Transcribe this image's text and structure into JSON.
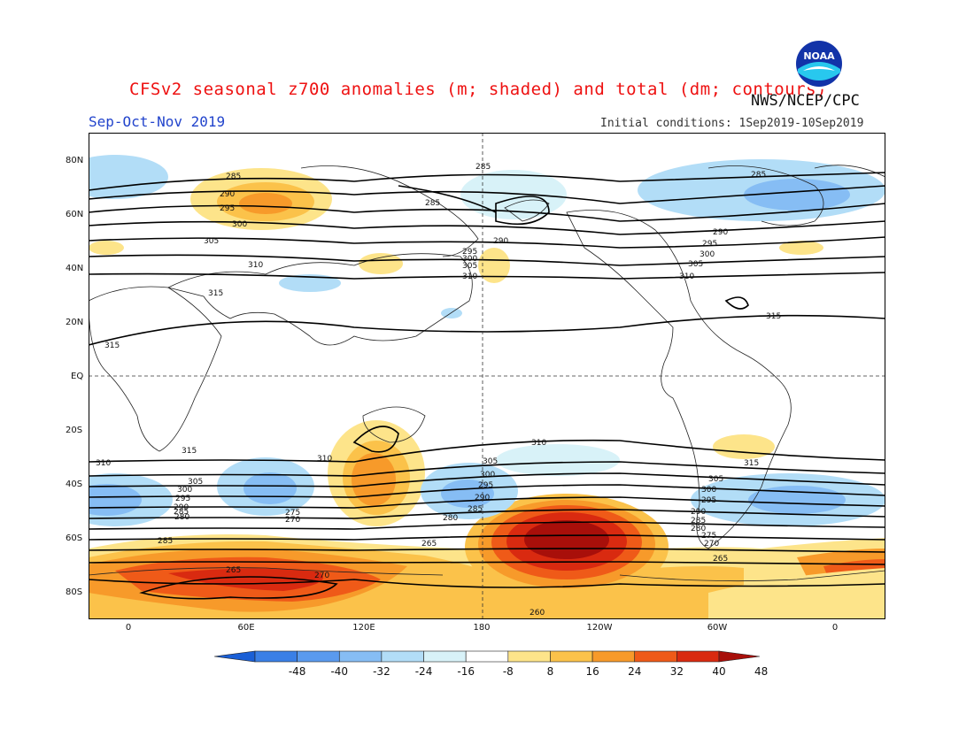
{
  "header": {
    "title": "CFSv2 seasonal z700 anomalies (m; shaded) and total (dm; contours)",
    "agency": "NWS/NCEP/CPC",
    "season": "Sep-Oct-Nov 2019",
    "initial_conditions": "Initial conditions: 1Sep2019-10Sep2019"
  },
  "logo": {
    "icon": "noaa-logo",
    "text": "NOAA"
  },
  "axes": {
    "lat_labels": [
      "80N",
      "60N",
      "40N",
      "20N",
      "EQ",
      "20S",
      "40S",
      "60S",
      "80S"
    ],
    "lon_labels": [
      "0",
      "60E",
      "120E",
      "180",
      "120W",
      "60W",
      "0"
    ]
  },
  "colorbar": {
    "labels": [
      "-48",
      "-40",
      "-32",
      "-24",
      "-16",
      "-8",
      "8",
      "16",
      "24",
      "32",
      "40",
      "48"
    ],
    "colors": [
      "#1a5fd6",
      "#3a7fe6",
      "#5a9aee",
      "#86bdf4",
      "#b2ddf7",
      "#d8f2f8",
      "#ffffff",
      "#fde48a",
      "#fbc24a",
      "#f79a2a",
      "#ef5a18",
      "#d92a10",
      "#a80f0a"
    ]
  },
  "contour_labels": {
    "north": [
      "285",
      "290",
      "295",
      "300",
      "305",
      "310",
      "315",
      "285",
      "290",
      "295",
      "300",
      "305",
      "310",
      "285",
      "290",
      "295",
      "300",
      "305",
      "310",
      "315",
      "285"
    ],
    "south": [
      "310",
      "305",
      "300",
      "295",
      "290",
      "285",
      "280",
      "275",
      "270",
      "285",
      "265",
      "270",
      "310",
      "305",
      "300",
      "295",
      "290",
      "285",
      "280",
      "265",
      "260",
      "310",
      "305",
      "300",
      "295",
      "290",
      "285",
      "280",
      "275",
      "270",
      "265",
      "315",
      "315",
      "315"
    ]
  }
}
